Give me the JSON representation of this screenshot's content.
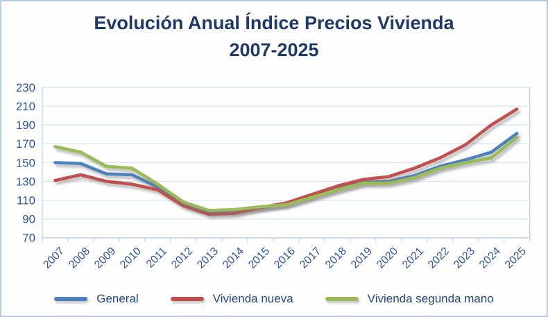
{
  "title": {
    "line1": "Evolución Anual Índice Precios Vivienda",
    "line2": "2007-2025"
  },
  "chart_data": {
    "type": "line",
    "x": [
      2007,
      2008,
      2009,
      2010,
      2011,
      2012,
      2013,
      2014,
      2015,
      2016,
      2017,
      2018,
      2019,
      2020,
      2021,
      2022,
      2023,
      2024,
      2025
    ],
    "series": [
      {
        "name": "General",
        "color": "#4F81BD",
        "values": [
          150,
          149,
          138,
          137,
          124,
          106,
          97,
          98,
          102,
          106,
          114,
          122,
          129,
          130,
          136,
          146,
          153,
          161,
          181
        ]
      },
      {
        "name": "Vivienda nueva",
        "color": "#C0504D",
        "values": [
          131,
          137,
          130,
          127,
          121,
          104,
          95,
          96,
          102,
          107,
          116,
          125,
          132,
          135,
          144,
          155,
          169,
          190,
          207
        ]
      },
      {
        "name": "Vivienda segunda mano",
        "color": "#9BBB59",
        "values": [
          167,
          161,
          146,
          144,
          127,
          108,
          99,
          100,
          103,
          105,
          113,
          121,
          128,
          128,
          134,
          144,
          150,
          155,
          177
        ]
      }
    ],
    "ylim": [
      70,
      230
    ],
    "ytick_step": 20,
    "yticks": [
      70,
      90,
      110,
      130,
      150,
      170,
      190,
      210,
      230
    ],
    "grid": true,
    "legend_position": "bottom",
    "x_label_rotation": -45
  },
  "colors": {
    "title": "#1f3864",
    "axis_text": "#2e5597",
    "gridline": "#dbe5f1",
    "axis_line": "#c4d5ea",
    "frame_border": "#b7c9e3"
  }
}
